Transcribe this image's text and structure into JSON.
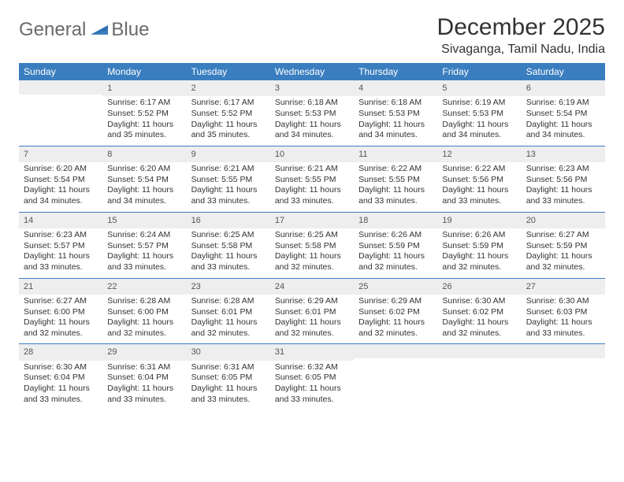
{
  "brand": {
    "part1": "General",
    "part2": "Blue"
  },
  "title": "December 2025",
  "location": "Sivaganga, Tamil Nadu, India",
  "colors": {
    "header_bg": "#3a7ebf",
    "header_text": "#ffffff",
    "daynum_bg": "#eeeeee",
    "text": "#333333",
    "row_border": "#3a7ebf",
    "logo_gray": "#6a6a6a",
    "logo_blue": "#3a7ebf"
  },
  "typography": {
    "title_fontsize": 30,
    "location_fontsize": 16,
    "dayheader_fontsize": 12,
    "cell_fontsize": 10.5
  },
  "day_headers": [
    "Sunday",
    "Monday",
    "Tuesday",
    "Wednesday",
    "Thursday",
    "Friday",
    "Saturday"
  ],
  "weeks": [
    [
      {
        "n": "",
        "sr": "",
        "ss": "",
        "dl": ""
      },
      {
        "n": "1",
        "sr": "Sunrise: 6:17 AM",
        "ss": "Sunset: 5:52 PM",
        "dl": "Daylight: 11 hours and 35 minutes."
      },
      {
        "n": "2",
        "sr": "Sunrise: 6:17 AM",
        "ss": "Sunset: 5:52 PM",
        "dl": "Daylight: 11 hours and 35 minutes."
      },
      {
        "n": "3",
        "sr": "Sunrise: 6:18 AM",
        "ss": "Sunset: 5:53 PM",
        "dl": "Daylight: 11 hours and 34 minutes."
      },
      {
        "n": "4",
        "sr": "Sunrise: 6:18 AM",
        "ss": "Sunset: 5:53 PM",
        "dl": "Daylight: 11 hours and 34 minutes."
      },
      {
        "n": "5",
        "sr": "Sunrise: 6:19 AM",
        "ss": "Sunset: 5:53 PM",
        "dl": "Daylight: 11 hours and 34 minutes."
      },
      {
        "n": "6",
        "sr": "Sunrise: 6:19 AM",
        "ss": "Sunset: 5:54 PM",
        "dl": "Daylight: 11 hours and 34 minutes."
      }
    ],
    [
      {
        "n": "7",
        "sr": "Sunrise: 6:20 AM",
        "ss": "Sunset: 5:54 PM",
        "dl": "Daylight: 11 hours and 34 minutes."
      },
      {
        "n": "8",
        "sr": "Sunrise: 6:20 AM",
        "ss": "Sunset: 5:54 PM",
        "dl": "Daylight: 11 hours and 34 minutes."
      },
      {
        "n": "9",
        "sr": "Sunrise: 6:21 AM",
        "ss": "Sunset: 5:55 PM",
        "dl": "Daylight: 11 hours and 33 minutes."
      },
      {
        "n": "10",
        "sr": "Sunrise: 6:21 AM",
        "ss": "Sunset: 5:55 PM",
        "dl": "Daylight: 11 hours and 33 minutes."
      },
      {
        "n": "11",
        "sr": "Sunrise: 6:22 AM",
        "ss": "Sunset: 5:55 PM",
        "dl": "Daylight: 11 hours and 33 minutes."
      },
      {
        "n": "12",
        "sr": "Sunrise: 6:22 AM",
        "ss": "Sunset: 5:56 PM",
        "dl": "Daylight: 11 hours and 33 minutes."
      },
      {
        "n": "13",
        "sr": "Sunrise: 6:23 AM",
        "ss": "Sunset: 5:56 PM",
        "dl": "Daylight: 11 hours and 33 minutes."
      }
    ],
    [
      {
        "n": "14",
        "sr": "Sunrise: 6:23 AM",
        "ss": "Sunset: 5:57 PM",
        "dl": "Daylight: 11 hours and 33 minutes."
      },
      {
        "n": "15",
        "sr": "Sunrise: 6:24 AM",
        "ss": "Sunset: 5:57 PM",
        "dl": "Daylight: 11 hours and 33 minutes."
      },
      {
        "n": "16",
        "sr": "Sunrise: 6:25 AM",
        "ss": "Sunset: 5:58 PM",
        "dl": "Daylight: 11 hours and 33 minutes."
      },
      {
        "n": "17",
        "sr": "Sunrise: 6:25 AM",
        "ss": "Sunset: 5:58 PM",
        "dl": "Daylight: 11 hours and 32 minutes."
      },
      {
        "n": "18",
        "sr": "Sunrise: 6:26 AM",
        "ss": "Sunset: 5:59 PM",
        "dl": "Daylight: 11 hours and 32 minutes."
      },
      {
        "n": "19",
        "sr": "Sunrise: 6:26 AM",
        "ss": "Sunset: 5:59 PM",
        "dl": "Daylight: 11 hours and 32 minutes."
      },
      {
        "n": "20",
        "sr": "Sunrise: 6:27 AM",
        "ss": "Sunset: 5:59 PM",
        "dl": "Daylight: 11 hours and 32 minutes."
      }
    ],
    [
      {
        "n": "21",
        "sr": "Sunrise: 6:27 AM",
        "ss": "Sunset: 6:00 PM",
        "dl": "Daylight: 11 hours and 32 minutes."
      },
      {
        "n": "22",
        "sr": "Sunrise: 6:28 AM",
        "ss": "Sunset: 6:00 PM",
        "dl": "Daylight: 11 hours and 32 minutes."
      },
      {
        "n": "23",
        "sr": "Sunrise: 6:28 AM",
        "ss": "Sunset: 6:01 PM",
        "dl": "Daylight: 11 hours and 32 minutes."
      },
      {
        "n": "24",
        "sr": "Sunrise: 6:29 AM",
        "ss": "Sunset: 6:01 PM",
        "dl": "Daylight: 11 hours and 32 minutes."
      },
      {
        "n": "25",
        "sr": "Sunrise: 6:29 AM",
        "ss": "Sunset: 6:02 PM",
        "dl": "Daylight: 11 hours and 32 minutes."
      },
      {
        "n": "26",
        "sr": "Sunrise: 6:30 AM",
        "ss": "Sunset: 6:02 PM",
        "dl": "Daylight: 11 hours and 32 minutes."
      },
      {
        "n": "27",
        "sr": "Sunrise: 6:30 AM",
        "ss": "Sunset: 6:03 PM",
        "dl": "Daylight: 11 hours and 33 minutes."
      }
    ],
    [
      {
        "n": "28",
        "sr": "Sunrise: 6:30 AM",
        "ss": "Sunset: 6:04 PM",
        "dl": "Daylight: 11 hours and 33 minutes."
      },
      {
        "n": "29",
        "sr": "Sunrise: 6:31 AM",
        "ss": "Sunset: 6:04 PM",
        "dl": "Daylight: 11 hours and 33 minutes."
      },
      {
        "n": "30",
        "sr": "Sunrise: 6:31 AM",
        "ss": "Sunset: 6:05 PM",
        "dl": "Daylight: 11 hours and 33 minutes."
      },
      {
        "n": "31",
        "sr": "Sunrise: 6:32 AM",
        "ss": "Sunset: 6:05 PM",
        "dl": "Daylight: 11 hours and 33 minutes."
      },
      {
        "n": "",
        "sr": "",
        "ss": "",
        "dl": ""
      },
      {
        "n": "",
        "sr": "",
        "ss": "",
        "dl": ""
      },
      {
        "n": "",
        "sr": "",
        "ss": "",
        "dl": ""
      }
    ]
  ]
}
